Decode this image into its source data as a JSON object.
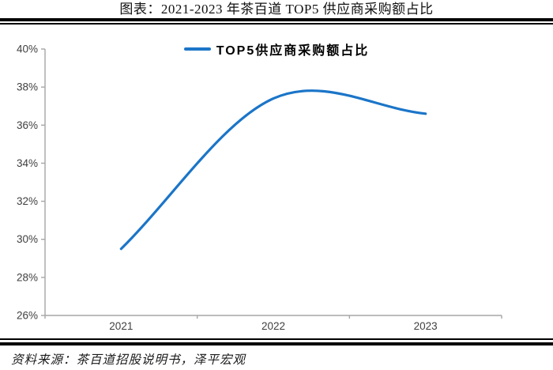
{
  "page": {
    "title": "图表：2021-2023 年茶百道 TOP5 供应商采购额占比",
    "source": "资料来源：茶百道招股说明书，泽平宏观"
  },
  "legend": {
    "label": "TOP5供应商采购额占比"
  },
  "chart_data": {
    "type": "line",
    "smoothed": true,
    "title": "2021-2023 年茶百道 TOP5 供应商采购额占比",
    "categories": [
      "2021",
      "2022",
      "2023"
    ],
    "series": [
      {
        "name": "TOP5供应商采购额占比",
        "values": [
          29.5,
          37.4,
          36.6
        ]
      }
    ],
    "ylim": [
      26,
      40
    ],
    "ytick_step": 2,
    "ytick_labels": [
      "40%",
      "38%",
      "36%",
      "34%",
      "32%",
      "30%",
      "28%",
      "26%"
    ],
    "xlabel": "",
    "ylabel": "",
    "grid": false,
    "legend_position": "top-center",
    "line_color": "#1B75C8",
    "axis_color": "#A6A6A6",
    "tick_label_color": "#3F3F3F"
  }
}
